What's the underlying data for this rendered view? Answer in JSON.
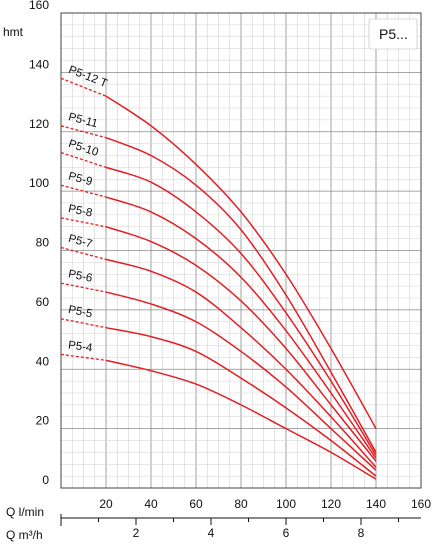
{
  "chart_data": {
    "type": "line",
    "badge": "P5...",
    "ylabel_unit": "hmt",
    "y_ticks": [
      "0",
      "20",
      "40",
      "60",
      "80",
      "100",
      "120",
      "140",
      "160"
    ],
    "ylim": [
      0,
      160
    ],
    "x_axis_primary": {
      "label": "Q l/min",
      "ticks": [
        "20",
        "40",
        "60",
        "80",
        "100",
        "120",
        "140",
        "160"
      ],
      "range": [
        0,
        160
      ]
    },
    "x_axis_secondary": {
      "label": "Q m³/h",
      "ticks": [
        "2",
        "4",
        "6",
        "8"
      ],
      "range": [
        0,
        9.6
      ]
    },
    "grid": true,
    "line_color": "#e31e24",
    "series": [
      {
        "name": "P5-4",
        "dashed": [
          [
            0,
            45
          ],
          [
            20,
            43
          ]
        ],
        "solid": [
          [
            20,
            43
          ],
          [
            40,
            39.5
          ],
          [
            60,
            35
          ],
          [
            80,
            28
          ],
          [
            100,
            20
          ],
          [
            120,
            12
          ],
          [
            140,
            3
          ]
        ]
      },
      {
        "name": "P5-5",
        "dashed": [
          [
            0,
            57
          ],
          [
            20,
            54
          ]
        ],
        "solid": [
          [
            20,
            54
          ],
          [
            40,
            51
          ],
          [
            60,
            46
          ],
          [
            80,
            37
          ],
          [
            100,
            27
          ],
          [
            120,
            16
          ],
          [
            140,
            4
          ]
        ]
      },
      {
        "name": "P5-6",
        "dashed": [
          [
            0,
            69
          ],
          [
            20,
            66
          ]
        ],
        "solid": [
          [
            20,
            66
          ],
          [
            40,
            62
          ],
          [
            60,
            56
          ],
          [
            80,
            46
          ],
          [
            100,
            34
          ],
          [
            120,
            20
          ],
          [
            140,
            6
          ]
        ]
      },
      {
        "name": "P5-7",
        "dashed": [
          [
            0,
            81
          ],
          [
            20,
            77
          ]
        ],
        "solid": [
          [
            20,
            77
          ],
          [
            40,
            73
          ],
          [
            60,
            66
          ],
          [
            80,
            54
          ],
          [
            100,
            40
          ],
          [
            120,
            24
          ],
          [
            140,
            7
          ]
        ]
      },
      {
        "name": "P5-8",
        "dashed": [
          [
            0,
            91
          ],
          [
            20,
            88
          ]
        ],
        "solid": [
          [
            20,
            88
          ],
          [
            40,
            83
          ],
          [
            60,
            75
          ],
          [
            80,
            63
          ],
          [
            100,
            47
          ],
          [
            120,
            28
          ],
          [
            140,
            9
          ]
        ]
      },
      {
        "name": "P5-9",
        "dashed": [
          [
            0,
            102
          ],
          [
            20,
            98
          ]
        ],
        "solid": [
          [
            20,
            98
          ],
          [
            40,
            93
          ],
          [
            60,
            84
          ],
          [
            80,
            71
          ],
          [
            100,
            53
          ],
          [
            120,
            32
          ],
          [
            140,
            10
          ]
        ]
      },
      {
        "name": "P5-10",
        "dashed": [
          [
            0,
            113
          ],
          [
            20,
            108
          ]
        ],
        "solid": [
          [
            20,
            108
          ],
          [
            40,
            103
          ],
          [
            60,
            93
          ],
          [
            80,
            79
          ],
          [
            100,
            59
          ],
          [
            120,
            36
          ],
          [
            140,
            11
          ]
        ]
      },
      {
        "name": "P5-11",
        "dashed": [
          [
            0,
            122
          ],
          [
            20,
            118
          ]
        ],
        "solid": [
          [
            20,
            118
          ],
          [
            40,
            112
          ],
          [
            60,
            102
          ],
          [
            80,
            87
          ],
          [
            100,
            65
          ],
          [
            120,
            39
          ],
          [
            140,
            12
          ]
        ]
      },
      {
        "name": "P5-12 T",
        "dashed": [
          [
            0,
            138
          ],
          [
            20,
            132
          ]
        ],
        "solid": [
          [
            20,
            132
          ],
          [
            40,
            122
          ],
          [
            60,
            109
          ],
          [
            80,
            93
          ],
          [
            100,
            72
          ],
          [
            120,
            47
          ],
          [
            140,
            20
          ]
        ]
      }
    ]
  }
}
